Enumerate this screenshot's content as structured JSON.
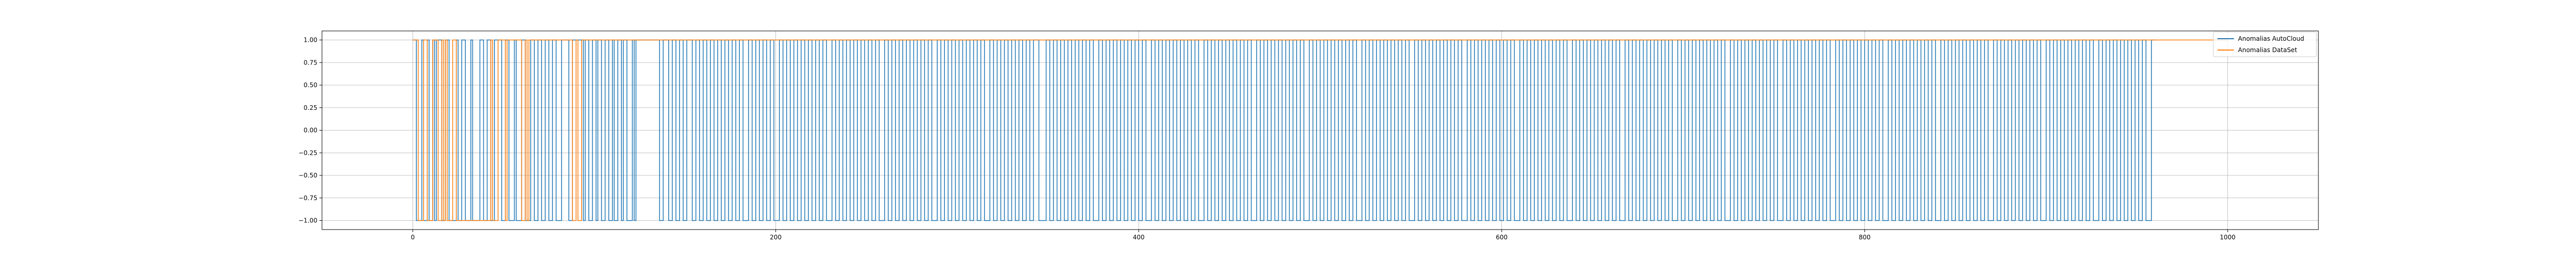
{
  "chart_data": {
    "type": "line",
    "title": "",
    "xlabel": "",
    "ylabel": "",
    "xlim": [
      -50,
      1050
    ],
    "ylim": [
      -1.1,
      1.1
    ],
    "grid": true,
    "legend_position": "top-right",
    "x_ticks": [
      {
        "value": 0,
        "label": "0"
      },
      {
        "value": 200,
        "label": "200"
      },
      {
        "value": 400,
        "label": "400"
      },
      {
        "value": 600,
        "label": "600"
      },
      {
        "value": 800,
        "label": "800"
      },
      {
        "value": 1000,
        "label": "1000"
      }
    ],
    "y_ticks": [
      {
        "value": 1.0,
        "label": "1.00"
      },
      {
        "value": 0.75,
        "label": "0.75"
      },
      {
        "value": 0.5,
        "label": "0.50"
      },
      {
        "value": 0.25,
        "label": "0.25"
      },
      {
        "value": 0.0,
        "label": "0.00"
      },
      {
        "value": -0.25,
        "label": "−0.25"
      },
      {
        "value": -0.5,
        "label": "−0.50"
      },
      {
        "value": -0.75,
        "label": "−0.75"
      },
      {
        "value": -1.0,
        "label": "−1.00"
      }
    ],
    "series": [
      {
        "name": "Anomalias AutoCloud",
        "color": "#1f77b4",
        "x_end": 960,
        "switch_points": [
          0,
          2,
          5,
          6,
          8,
          9,
          11,
          12,
          13,
          16,
          18,
          20,
          24,
          25,
          27,
          29,
          32,
          33,
          37,
          39,
          41,
          43,
          45,
          49,
          51,
          53,
          56,
          57,
          60,
          62,
          65,
          67,
          69,
          71,
          73,
          75,
          77,
          79,
          82,
          86,
          88,
          94,
          95,
          97,
          99,
          101,
          102,
          104,
          106,
          108,
          110,
          111,
          113,
          115,
          116,
          118,
          121,
          122,
          123,
          136,
          138,
          141,
          143,
          145,
          147,
          149,
          151,
          154,
          156,
          158,
          160,
          162,
          164,
          166,
          168,
          170,
          172,
          174,
          176,
          178,
          180,
          182,
          185,
          187,
          189,
          191,
          193,
          195,
          197,
          199,
          202,
          204,
          206,
          208,
          210,
          212,
          214,
          216,
          218,
          220,
          222,
          224,
          226,
          228,
          231,
          233,
          235,
          237,
          239,
          241,
          243,
          245,
          247,
          249,
          251,
          253,
          255,
          257,
          260,
          262,
          264,
          266,
          268,
          270,
          272,
          274,
          276,
          278,
          280,
          282,
          284,
          286,
          289,
          291,
          293,
          295,
          297,
          299,
          301,
          303,
          305,
          307,
          309,
          311,
          313,
          315,
          318,
          320,
          322,
          324,
          326,
          328,
          330,
          332,
          334,
          336,
          338,
          340,
          342,
          345,
          349,
          351,
          353,
          355,
          357,
          359,
          361,
          363,
          365,
          367,
          369,
          371,
          373,
          375,
          378,
          380,
          382,
          384,
          386,
          388,
          390,
          392,
          394,
          396,
          398,
          400,
          402,
          404,
          407,
          409,
          411,
          413,
          415,
          417,
          419,
          421,
          423,
          425,
          427,
          429,
          431,
          433,
          436,
          438,
          440,
          442,
          444,
          446,
          448,
          450,
          452,
          454,
          456,
          458,
          460,
          462,
          465,
          467,
          469,
          471,
          473,
          475,
          477,
          479,
          481,
          483,
          485,
          487,
          489,
          491,
          494,
          496,
          498,
          500,
          502,
          504,
          506,
          508,
          510,
          512,
          514,
          516,
          518,
          520,
          523,
          525,
          527,
          529,
          531,
          533,
          535,
          537,
          539,
          541,
          543,
          545,
          547,
          549,
          552,
          554,
          556,
          558,
          560,
          562,
          564,
          566,
          568,
          570,
          572,
          574,
          576,
          578,
          581,
          583,
          585,
          587,
          589,
          591,
          593,
          595,
          597,
          599,
          601,
          603,
          605,
          607,
          610,
          612,
          614,
          616,
          618,
          620,
          622,
          624,
          626,
          628,
          630,
          632,
          634,
          636,
          639,
          641,
          643,
          645,
          647,
          649,
          651,
          653,
          655,
          657,
          659,
          661,
          663,
          665,
          668,
          670,
          672,
          674,
          676,
          678,
          680,
          682,
          684,
          686,
          688,
          690,
          692,
          694,
          697,
          699,
          701,
          703,
          705,
          707,
          709,
          711,
          713,
          715,
          717,
          719,
          721,
          723,
          726,
          728,
          730,
          732,
          734,
          736,
          738,
          740,
          742,
          744,
          746,
          748,
          750,
          752,
          755,
          757,
          759,
          761,
          763,
          765,
          767,
          769,
          771,
          773,
          775,
          777,
          779,
          781,
          784,
          786,
          788,
          790,
          792,
          794,
          796,
          798,
          800,
          802,
          804,
          806,
          808,
          810,
          813,
          815,
          817,
          819,
          821,
          823,
          825,
          827,
          829,
          831,
          833,
          835,
          837,
          839,
          842,
          844,
          846,
          848,
          850,
          852,
          854,
          856,
          858,
          860,
          862,
          864,
          866,
          868,
          871,
          873,
          875,
          877,
          879,
          881,
          883,
          885,
          887,
          889,
          891,
          893,
          895,
          897,
          900,
          902,
          904,
          906,
          908,
          910,
          912,
          914,
          916,
          918,
          920,
          922,
          924,
          926,
          929,
          931,
          933,
          935,
          937,
          939,
          941,
          943,
          945,
          947,
          949,
          951,
          953,
          955,
          958
        ]
      },
      {
        "name": "Anomalias DataSet",
        "color": "#ff7f0e",
        "x_end": 1000,
        "switch_points": [
          0,
          3,
          6,
          8,
          11,
          14,
          16,
          17,
          18,
          19,
          22,
          24,
          43,
          44,
          47,
          51,
          52,
          60,
          62,
          63,
          64,
          88,
          90,
          91,
          93
        ]
      }
    ]
  }
}
